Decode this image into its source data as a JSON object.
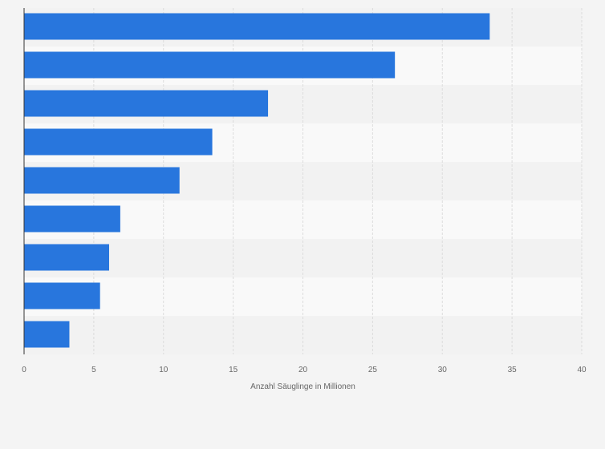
{
  "chart_data": {
    "type": "bar",
    "orientation": "horizontal",
    "title": "",
    "xlabel": "Anzahl Säuglinge in Millionen",
    "ylabel": "",
    "xlim": [
      0,
      40
    ],
    "xticks": [
      "0",
      "5",
      "10",
      "15",
      "20",
      "25",
      "30",
      "35",
      "40"
    ],
    "categories": [
      "",
      "",
      "",
      "",
      "",
      "",
      "",
      "",
      ""
    ],
    "values": [
      33.4,
      26.6,
      17.5,
      13.5,
      11.15,
      6.9,
      6.1,
      5.45,
      3.25
    ],
    "grid": true,
    "legend": "none",
    "colors": {
      "bar": "#2876dd",
      "band_light": "#f9f9f9",
      "band_dark": "#f2f2f2",
      "grid": "#dcdcdc",
      "axis": "#333333",
      "text": "#666666"
    }
  }
}
